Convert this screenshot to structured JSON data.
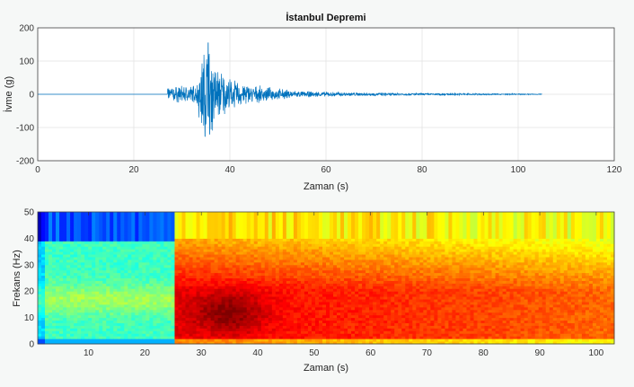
{
  "chart_data": [
    {
      "type": "line",
      "title": "İstanbul Depremi",
      "xlabel": "Zaman (s)",
      "ylabel": "İvme (g)",
      "xlim": [
        0,
        120
      ],
      "ylim": [
        -200,
        200
      ],
      "xticks": [
        0,
        20,
        40,
        60,
        80,
        100,
        120
      ],
      "yticks": [
        -200,
        -100,
        0,
        100,
        200
      ],
      "grid": true,
      "color": "#0072bd",
      "signal_start": 27,
      "signal_end": 105,
      "peak_time": 35.5,
      "peak_max": 155,
      "peak_min": -120,
      "envelope": [
        [
          27,
          20
        ],
        [
          33,
          25
        ],
        [
          35,
          150
        ],
        [
          37,
          80
        ],
        [
          40,
          40
        ],
        [
          45,
          22
        ],
        [
          55,
          8
        ],
        [
          70,
          4
        ],
        [
          105,
          1
        ]
      ]
    },
    {
      "type": "heatmap",
      "title": "",
      "xlabel": "Zaman (s)",
      "ylabel": "Frekans (Hz)",
      "xlim": [
        1,
        103.2
      ],
      "ylim": [
        0,
        50
      ],
      "xticks": [
        10,
        20,
        30,
        40,
        50,
        60,
        70,
        80,
        90,
        100
      ],
      "yticks": [
        0,
        10,
        20,
        30,
        40,
        50
      ],
      "colormap": "jet",
      "onset_time": 25.5,
      "max_energy_time": 35,
      "max_energy_freq": 12
    }
  ]
}
